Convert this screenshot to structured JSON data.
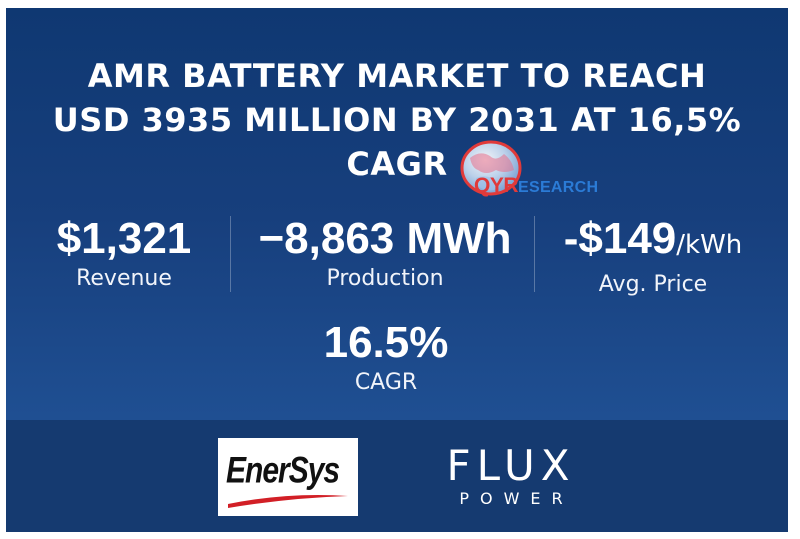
{
  "headline": {
    "line1": "AMR BATTERY MARKET TO REACH",
    "line2": "USD 3935 MILLION BY 2031 AT 16,5%",
    "line3": "CAGR"
  },
  "watermark": {
    "q": "QYR",
    "rest": "ESEARCH",
    "icon": "globe-icon"
  },
  "stats": {
    "revenue": {
      "value": "$1,321",
      "label": "Revenue"
    },
    "production": {
      "value": "−8,863 MWh",
      "label": "Production"
    },
    "price": {
      "value": "-$149",
      "unit": "/kWh",
      "label": "Avg. Price"
    },
    "cagr": {
      "value": "16.5%",
      "label": "CAGR"
    }
  },
  "logos": {
    "enersys": "EnerSys",
    "flux_line1": "FLUX",
    "flux_line2": "POWER"
  },
  "colors": {
    "background": "#173f7d",
    "footer": "#153a70",
    "text": "#ffffff",
    "qyr_red": "#e03a3a",
    "qyr_blue": "#2b7bd6"
  }
}
